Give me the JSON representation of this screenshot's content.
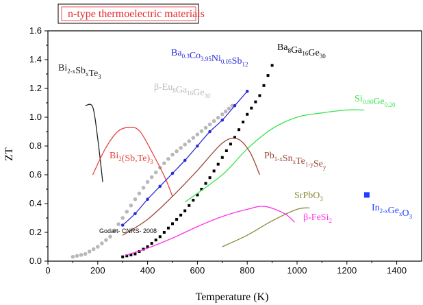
{
  "colors": {
    "axis": "#000000",
    "title": "#e8272a",
    "bi_sb_te": "#222222",
    "beta_eu": "#b8b8b8",
    "ba_co_ni_sb": "#2b2bd9",
    "ba_ga_ge": "#000000",
    "si_ge": "#38e34a",
    "bi_sbte": "#e8413f",
    "pb_sn_te_se": "#9b4638",
    "srpbo3": "#8a8a3c",
    "fesi2": "#ff30e9",
    "in_ge_o3": "#1f3fff"
  },
  "chart_data": {
    "type": "line",
    "title": "n-type thermoelectric materials",
    "xlabel": "Temperature (K)",
    "ylabel": "ZT",
    "xlim": [
      0,
      1500
    ],
    "ylim": [
      0,
      1.6
    ],
    "xticks": [
      "0",
      "200",
      "400",
      "600",
      "800",
      "1000",
      "1200",
      "1400"
    ],
    "yticks": [
      "0.0",
      "0.2",
      "0.4",
      "0.6",
      "0.8",
      "1.0",
      "1.2",
      "1.4",
      "1.6"
    ],
    "grid": false,
    "annotations": [
      "Godart- CNRS- 2008"
    ],
    "series": [
      {
        "key": "bi_sb_te",
        "label_main": [
          "Bi",
          "Sb",
          "Te"
        ],
        "label_sub": [
          "2-x",
          "x",
          "3"
        ],
        "style": "line",
        "x": [
          150,
          180,
          200,
          220
        ],
        "y": [
          1.08,
          1.07,
          0.85,
          0.55
        ]
      },
      {
        "key": "beta_eu",
        "label_main": [
          "β-Eu",
          "Ga",
          "Ge"
        ],
        "label_sub": [
          "8",
          "16",
          "30"
        ],
        "style": "dots",
        "x": [
          100,
          150,
          200,
          250,
          300,
          350,
          400,
          450,
          500,
          550,
          600,
          650,
          700,
          740
        ],
        "y": [
          0.03,
          0.05,
          0.1,
          0.17,
          0.3,
          0.43,
          0.55,
          0.65,
          0.74,
          0.81,
          0.88,
          0.95,
          1.02,
          1.08
        ]
      },
      {
        "key": "ba_co_ni_sb",
        "label_main": [
          "Ba",
          "Co",
          "Ni",
          "Sb"
        ],
        "label_sub": [
          "0.3",
          "3.95",
          "0.05",
          "12"
        ],
        "style": "line-markers",
        "x": [
          300,
          350,
          400,
          450,
          500,
          550,
          600,
          650,
          700,
          750,
          800
        ],
        "y": [
          0.25,
          0.33,
          0.43,
          0.52,
          0.61,
          0.7,
          0.8,
          0.9,
          0.98,
          1.08,
          1.18
        ]
      },
      {
        "key": "ba_ga_ge",
        "label_main": [
          "Ba",
          "Ga",
          "Ge"
        ],
        "label_sub": [
          "8",
          "16",
          "30"
        ],
        "style": "squares",
        "x": [
          300,
          350,
          400,
          450,
          500,
          550,
          600,
          650,
          700,
          750,
          800,
          850,
          900
        ],
        "y": [
          0.03,
          0.05,
          0.1,
          0.17,
          0.26,
          0.35,
          0.46,
          0.58,
          0.72,
          0.86,
          1.02,
          1.15,
          1.36
        ]
      },
      {
        "key": "si_ge",
        "label_main": [
          "Si",
          "Ge"
        ],
        "label_sub": [
          "0.80",
          "0.20"
        ],
        "style": "line",
        "x": [
          550,
          700,
          800,
          900,
          1000,
          1100,
          1200,
          1270
        ],
        "y": [
          0.41,
          0.6,
          0.78,
          0.92,
          1.0,
          1.03,
          1.05,
          1.05
        ]
      },
      {
        "key": "bi_sbte",
        "label_main": [
          "Bi",
          "(Sb,Te)"
        ],
        "label_sub": [
          "2",
          "3"
        ],
        "style": "line",
        "x": [
          180,
          230,
          280,
          330,
          370,
          420,
          470,
          500
        ],
        "y": [
          0.6,
          0.78,
          0.9,
          0.93,
          0.9,
          0.75,
          0.58,
          0.45
        ]
      },
      {
        "key": "pb_sn_te_se",
        "label_main": [
          "Pb",
          "Sn",
          "Te",
          "Se"
        ],
        "label_sub": [
          "1-x",
          "x",
          "1-y",
          "y"
        ],
        "style": "line",
        "x": [
          300,
          400,
          500,
          600,
          700,
          760,
          810,
          850
        ],
        "y": [
          0.18,
          0.29,
          0.45,
          0.63,
          0.82,
          0.85,
          0.76,
          0.6
        ]
      },
      {
        "key": "srpbo3",
        "label_main": [
          "SrPbO"
        ],
        "label_sub": [
          "3"
        ],
        "style": "line",
        "x": [
          700,
          800,
          900,
          1000,
          1050
        ],
        "y": [
          0.1,
          0.18,
          0.28,
          0.36,
          0.37
        ]
      },
      {
        "key": "fesi2",
        "label_main": [
          "β-FeSi"
        ],
        "label_sub": [
          "2"
        ],
        "style": "line",
        "x": [
          310,
          400,
          500,
          600,
          700,
          800,
          870,
          950,
          990
        ],
        "y": [
          0.04,
          0.09,
          0.16,
          0.24,
          0.31,
          0.36,
          0.38,
          0.33,
          0.27
        ]
      },
      {
        "key": "in_ge_o3",
        "label_main": [
          "In",
          "Ge",
          "O"
        ],
        "label_sub": [
          "2-x",
          "x",
          "3"
        ],
        "style": "point",
        "x": [
          1280
        ],
        "y": [
          0.46
        ]
      }
    ]
  }
}
